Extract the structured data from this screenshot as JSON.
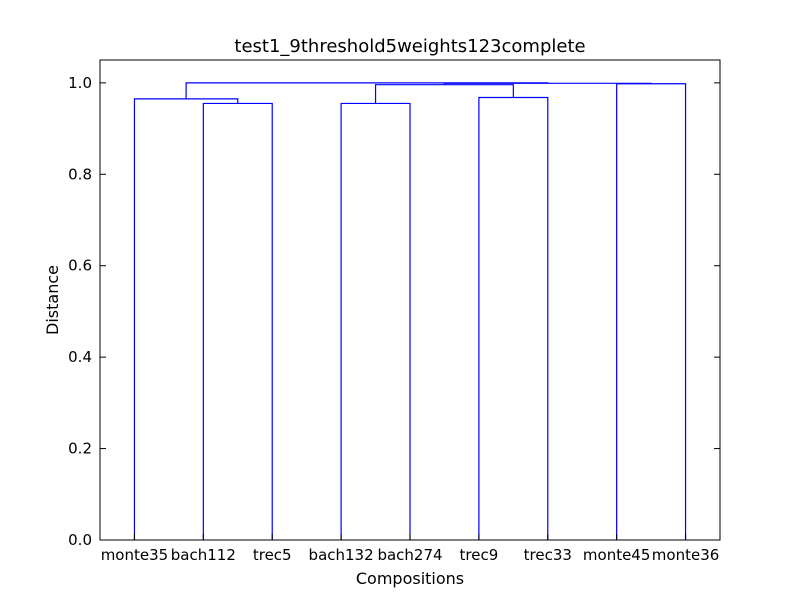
{
  "chart_data": {
    "type": "dendrogram",
    "title": "test1_9threshold5weights123complete",
    "xlabel": "Compositions",
    "ylabel": "Distance",
    "ylim": [
      0,
      1.05
    ],
    "yticks": [
      0.0,
      0.2,
      0.4,
      0.6,
      0.8,
      1.0
    ],
    "ytick_labels": [
      "0.0",
      "0.2",
      "0.4",
      "0.6",
      "0.8",
      "1.0"
    ],
    "leaves": [
      "monte35",
      "bach112",
      "trec5",
      "bach132",
      "bach274",
      "trec9",
      "trec33",
      "monte45",
      "monte36"
    ],
    "link_color": "#0000ff",
    "links": [
      {
        "left": "bach112",
        "right": "trec5",
        "height": 0.955
      },
      {
        "left": "monte35",
        "right": "bach112+trec5",
        "height": 0.965
      },
      {
        "left": "bach132",
        "right": "bach274",
        "height": 0.955
      },
      {
        "left": "trec9",
        "right": "trec33",
        "height": 0.968
      },
      {
        "left": "bach132+bach274",
        "right": "trec9+trec33",
        "height": 0.996
      },
      {
        "left": "monte45",
        "right": "monte36",
        "height": 0.998
      },
      {
        "left": "bach132..trec33",
        "right": "monte45+monte36",
        "height": 0.999
      },
      {
        "left": "monte35..trec5",
        "right": "bach132..monte36",
        "height": 1.0
      }
    ]
  }
}
